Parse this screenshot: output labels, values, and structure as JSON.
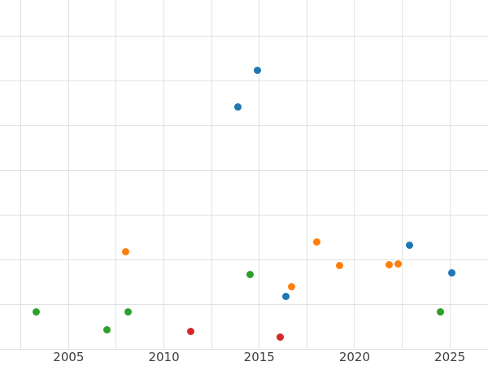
{
  "chart_data": {
    "type": "scatter",
    "title": "",
    "xlabel": "",
    "ylabel": "",
    "xlim": [
      2001.4,
      2027.0
    ],
    "ylim": [
      0,
      78
    ],
    "grid": true,
    "legend": false,
    "marker_size": 9,
    "grid_color": "#e1e1e1",
    "tick_label_color": "#3d3d3d",
    "x_ticks": [
      2005,
      2010,
      2015,
      2020,
      2025
    ],
    "x_tick_labels": [
      "2005",
      "2010",
      "2015",
      "2020",
      "2025"
    ],
    "x_gridlines": [
      2002.5,
      2005,
      2007.5,
      2010,
      2012.5,
      2015,
      2017.5,
      2020,
      2022.5,
      2025
    ],
    "y_gridlines": [
      0,
      10,
      20,
      30,
      40,
      50,
      60,
      70
    ],
    "series": [
      {
        "name": "blue",
        "color": "#1f77b4",
        "points": [
          [
            2013.9,
            54.2
          ],
          [
            2014.9,
            62.4
          ],
          [
            2016.4,
            11.8
          ],
          [
            2022.9,
            23.4
          ],
          [
            2025.1,
            17.1
          ]
        ]
      },
      {
        "name": "orange",
        "color": "#ff7f0e",
        "points": [
          [
            2008.0,
            21.8
          ],
          [
            2016.7,
            14.1
          ],
          [
            2018.0,
            24.1
          ],
          [
            2019.2,
            18.7
          ],
          [
            2021.8,
            19.0
          ],
          [
            2022.3,
            19.2
          ]
        ]
      },
      {
        "name": "green",
        "color": "#2ca02c",
        "points": [
          [
            2003.3,
            8.5
          ],
          [
            2007.0,
            4.4
          ],
          [
            2008.1,
            8.5
          ],
          [
            2014.5,
            16.7
          ],
          [
            2024.5,
            8.5
          ]
        ]
      },
      {
        "name": "red",
        "color": "#d62728",
        "points": [
          [
            2011.4,
            4.0
          ],
          [
            2016.1,
            2.9
          ]
        ]
      }
    ]
  }
}
